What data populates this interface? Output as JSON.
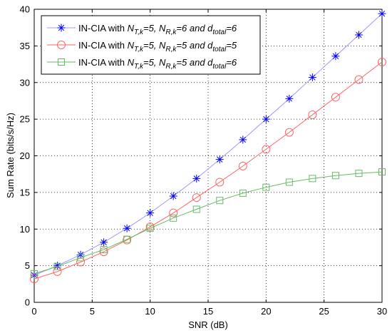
{
  "chart_data": {
    "type": "line",
    "title": "",
    "xlabel": "SNR (dB)",
    "ylabel": "Sum Rate (bits/s/Hz)",
    "xlim": [
      0,
      30
    ],
    "ylim": [
      0,
      40
    ],
    "xticks": [
      "0",
      "5",
      "10",
      "15",
      "20",
      "25",
      "30"
    ],
    "yticks": [
      "0",
      "5",
      "10",
      "15",
      "20",
      "25",
      "30",
      "35",
      "40"
    ],
    "grid": true,
    "legend_position": "top-left",
    "x": [
      0,
      2,
      4,
      6,
      8,
      10,
      12,
      14,
      16,
      18,
      20,
      22,
      24,
      26,
      28,
      30
    ],
    "series": [
      {
        "name": "IN-CIA with N_{T,k}=5, N_{R,k}=6 and d_{total}=6",
        "legend_parts": {
          "prefix": "IN-CIA with ",
          "a": "N",
          "a_sub": "T,k",
          "a_val": "=5, ",
          "b": "N",
          "b_sub": "R,k",
          "b_val": "=6 and ",
          "c": "d",
          "c_sub": "total",
          "c_val": "=6"
        },
        "color": "#0000ff",
        "line_color": "#9999ff",
        "marker": "star",
        "values": [
          3.7,
          5.0,
          6.5,
          8.2,
          10.1,
          12.2,
          14.5,
          16.9,
          19.5,
          22.2,
          25.0,
          27.8,
          30.7,
          33.6,
          36.5,
          39.4
        ]
      },
      {
        "name": "IN-CIA with N_{T,k}=5, N_{R,k}=5 and d_{total}=5",
        "legend_parts": {
          "prefix": "IN-CIA with ",
          "a": "N",
          "a_sub": "T,k",
          "a_val": "=5, ",
          "b": "N",
          "b_sub": "R,k",
          "b_val": "=5 and ",
          "c": "d",
          "c_sub": "total",
          "c_val": "=5"
        },
        "color": "#ff6666",
        "line_color": "#ff6666",
        "marker": "circle",
        "values": [
          3.2,
          4.2,
          5.5,
          6.9,
          8.5,
          10.3,
          12.2,
          14.3,
          16.4,
          18.6,
          20.9,
          23.2,
          25.6,
          28.0,
          30.4,
          32.8
        ]
      },
      {
        "name": "IN-CIA with N_{T,k}=5, N_{R,k}=5 and d_{total}=6",
        "legend_parts": {
          "prefix": "IN-CIA with ",
          "a": "N",
          "a_sub": "T,k",
          "a_val": "=5, ",
          "b": "N",
          "b_sub": "R,k",
          "b_val": "=5 and ",
          "c": "d",
          "c_sub": "total",
          "c_val": "=6"
        },
        "color": "#66bb66",
        "line_color": "#66bb66",
        "marker": "square",
        "values": [
          3.9,
          4.9,
          6.1,
          7.2,
          8.6,
          10.1,
          11.5,
          12.7,
          13.9,
          14.9,
          15.7,
          16.4,
          16.9,
          17.3,
          17.6,
          17.8
        ]
      }
    ]
  }
}
